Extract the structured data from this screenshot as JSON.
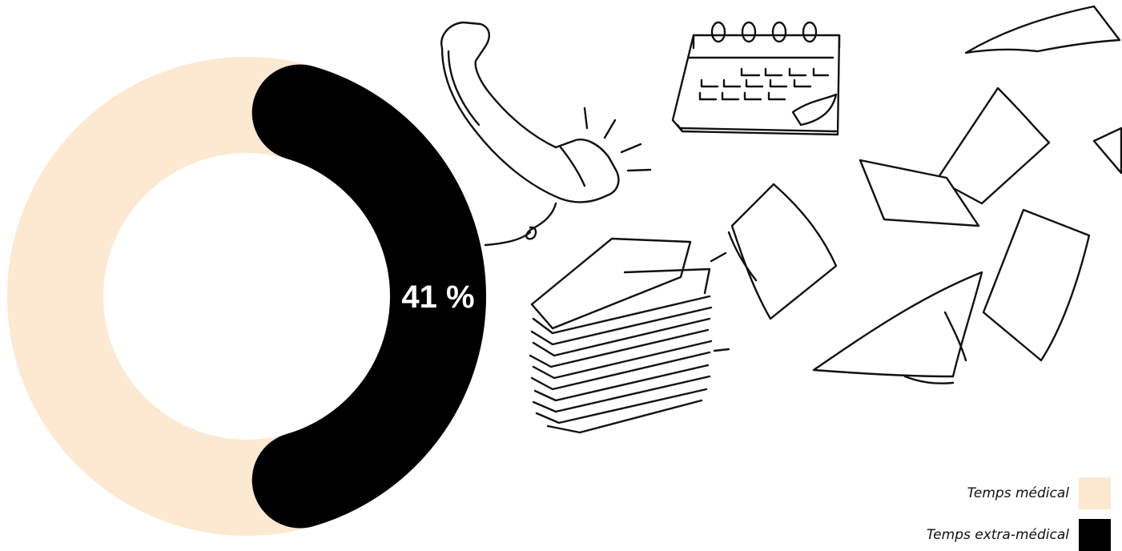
{
  "chart_data": {
    "type": "pie",
    "variant": "donut",
    "title": "",
    "categories": [
      "Temps médical",
      "Temps extra-médical"
    ],
    "values": [
      59,
      41
    ],
    "colors": [
      "#fde8d2",
      "#000000"
    ],
    "data_labels": [
      "",
      "41 %"
    ],
    "legend": {
      "placement": "bottom-right",
      "entries": [
        {
          "label": "Temps médical",
          "color": "#fde8d2"
        },
        {
          "label": "Temps extra-médical",
          "color": "#000000"
        }
      ]
    },
    "grid": false
  },
  "illustrations": {
    "telephone": "telephone-icon",
    "calendar": "calendar-icon",
    "paper_stack": "paper-stack-icon",
    "flying_papers": "flying-papers-icon"
  }
}
